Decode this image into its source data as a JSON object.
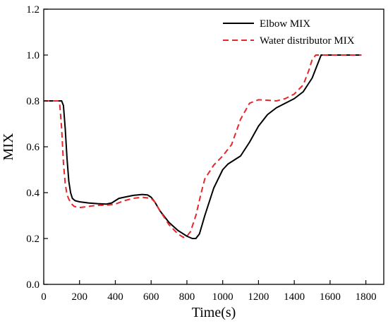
{
  "chart_data": {
    "type": "line",
    "title": "",
    "xlabel": "Time(s)",
    "ylabel": "MIX",
    "xlim": [
      0,
      1900
    ],
    "ylim": [
      0,
      1.2
    ],
    "xticks": [
      0,
      200,
      400,
      600,
      800,
      1000,
      1200,
      1400,
      1600,
      1800
    ],
    "yticks": [
      0.0,
      0.2,
      0.4,
      0.6,
      0.8,
      1.0,
      1.2
    ],
    "xtick_labels": [
      "0",
      "200",
      "400",
      "600",
      "800",
      "1000",
      "1200",
      "1400",
      "1600",
      "1800"
    ],
    "ytick_labels": [
      "0.0",
      "0.2",
      "0.4",
      "0.6",
      "0.8",
      "1.0",
      "1.2"
    ],
    "grid": false,
    "legend_position": "top-right",
    "series": [
      {
        "name": "Elbow MIX",
        "color": "#000000",
        "style": "solid",
        "x": [
          0,
          100,
          110,
          120,
          130,
          140,
          150,
          160,
          175,
          200,
          250,
          300,
          350,
          380,
          400,
          420,
          450,
          500,
          550,
          580,
          600,
          620,
          650,
          700,
          750,
          800,
          830,
          850,
          870,
          900,
          950,
          1000,
          1030,
          1060,
          1100,
          1150,
          1200,
          1250,
          1300,
          1350,
          1400,
          1450,
          1500,
          1530,
          1550,
          1600,
          1650,
          1700,
          1750,
          1775
        ],
        "y": [
          0.8,
          0.8,
          0.78,
          0.68,
          0.55,
          0.45,
          0.4,
          0.375,
          0.365,
          0.36,
          0.355,
          0.352,
          0.35,
          0.355,
          0.365,
          0.375,
          0.38,
          0.388,
          0.392,
          0.39,
          0.38,
          0.36,
          0.32,
          0.27,
          0.235,
          0.21,
          0.2,
          0.2,
          0.22,
          0.3,
          0.42,
          0.5,
          0.525,
          0.54,
          0.56,
          0.62,
          0.69,
          0.74,
          0.77,
          0.79,
          0.81,
          0.84,
          0.9,
          0.96,
          1.0,
          1.0,
          1.0,
          1.0,
          1.0,
          1.0
        ]
      },
      {
        "name": "Water distributor MIX",
        "color": "#e8262b",
        "style": "dashed",
        "x": [
          0,
          80,
          90,
          100,
          110,
          120,
          130,
          150,
          170,
          200,
          250,
          300,
          350,
          400,
          450,
          500,
          550,
          600,
          620,
          650,
          700,
          750,
          780,
          800,
          820,
          850,
          880,
          900,
          950,
          1000,
          1050,
          1100,
          1150,
          1200,
          1250,
          1300,
          1350,
          1400,
          1450,
          1480,
          1500,
          1520,
          1550,
          1600,
          1650,
          1700,
          1750,
          1775
        ],
        "y": [
          0.8,
          0.8,
          0.78,
          0.68,
          0.53,
          0.44,
          0.39,
          0.355,
          0.34,
          0.335,
          0.34,
          0.345,
          0.345,
          0.35,
          0.365,
          0.375,
          0.38,
          0.375,
          0.36,
          0.32,
          0.26,
          0.22,
          0.205,
          0.21,
          0.23,
          0.3,
          0.4,
          0.46,
          0.52,
          0.56,
          0.61,
          0.72,
          0.79,
          0.805,
          0.803,
          0.8,
          0.81,
          0.83,
          0.87,
          0.93,
          0.98,
          1.0,
          1.0,
          1.0,
          1.0,
          1.0,
          1.0,
          1.0
        ]
      }
    ]
  }
}
